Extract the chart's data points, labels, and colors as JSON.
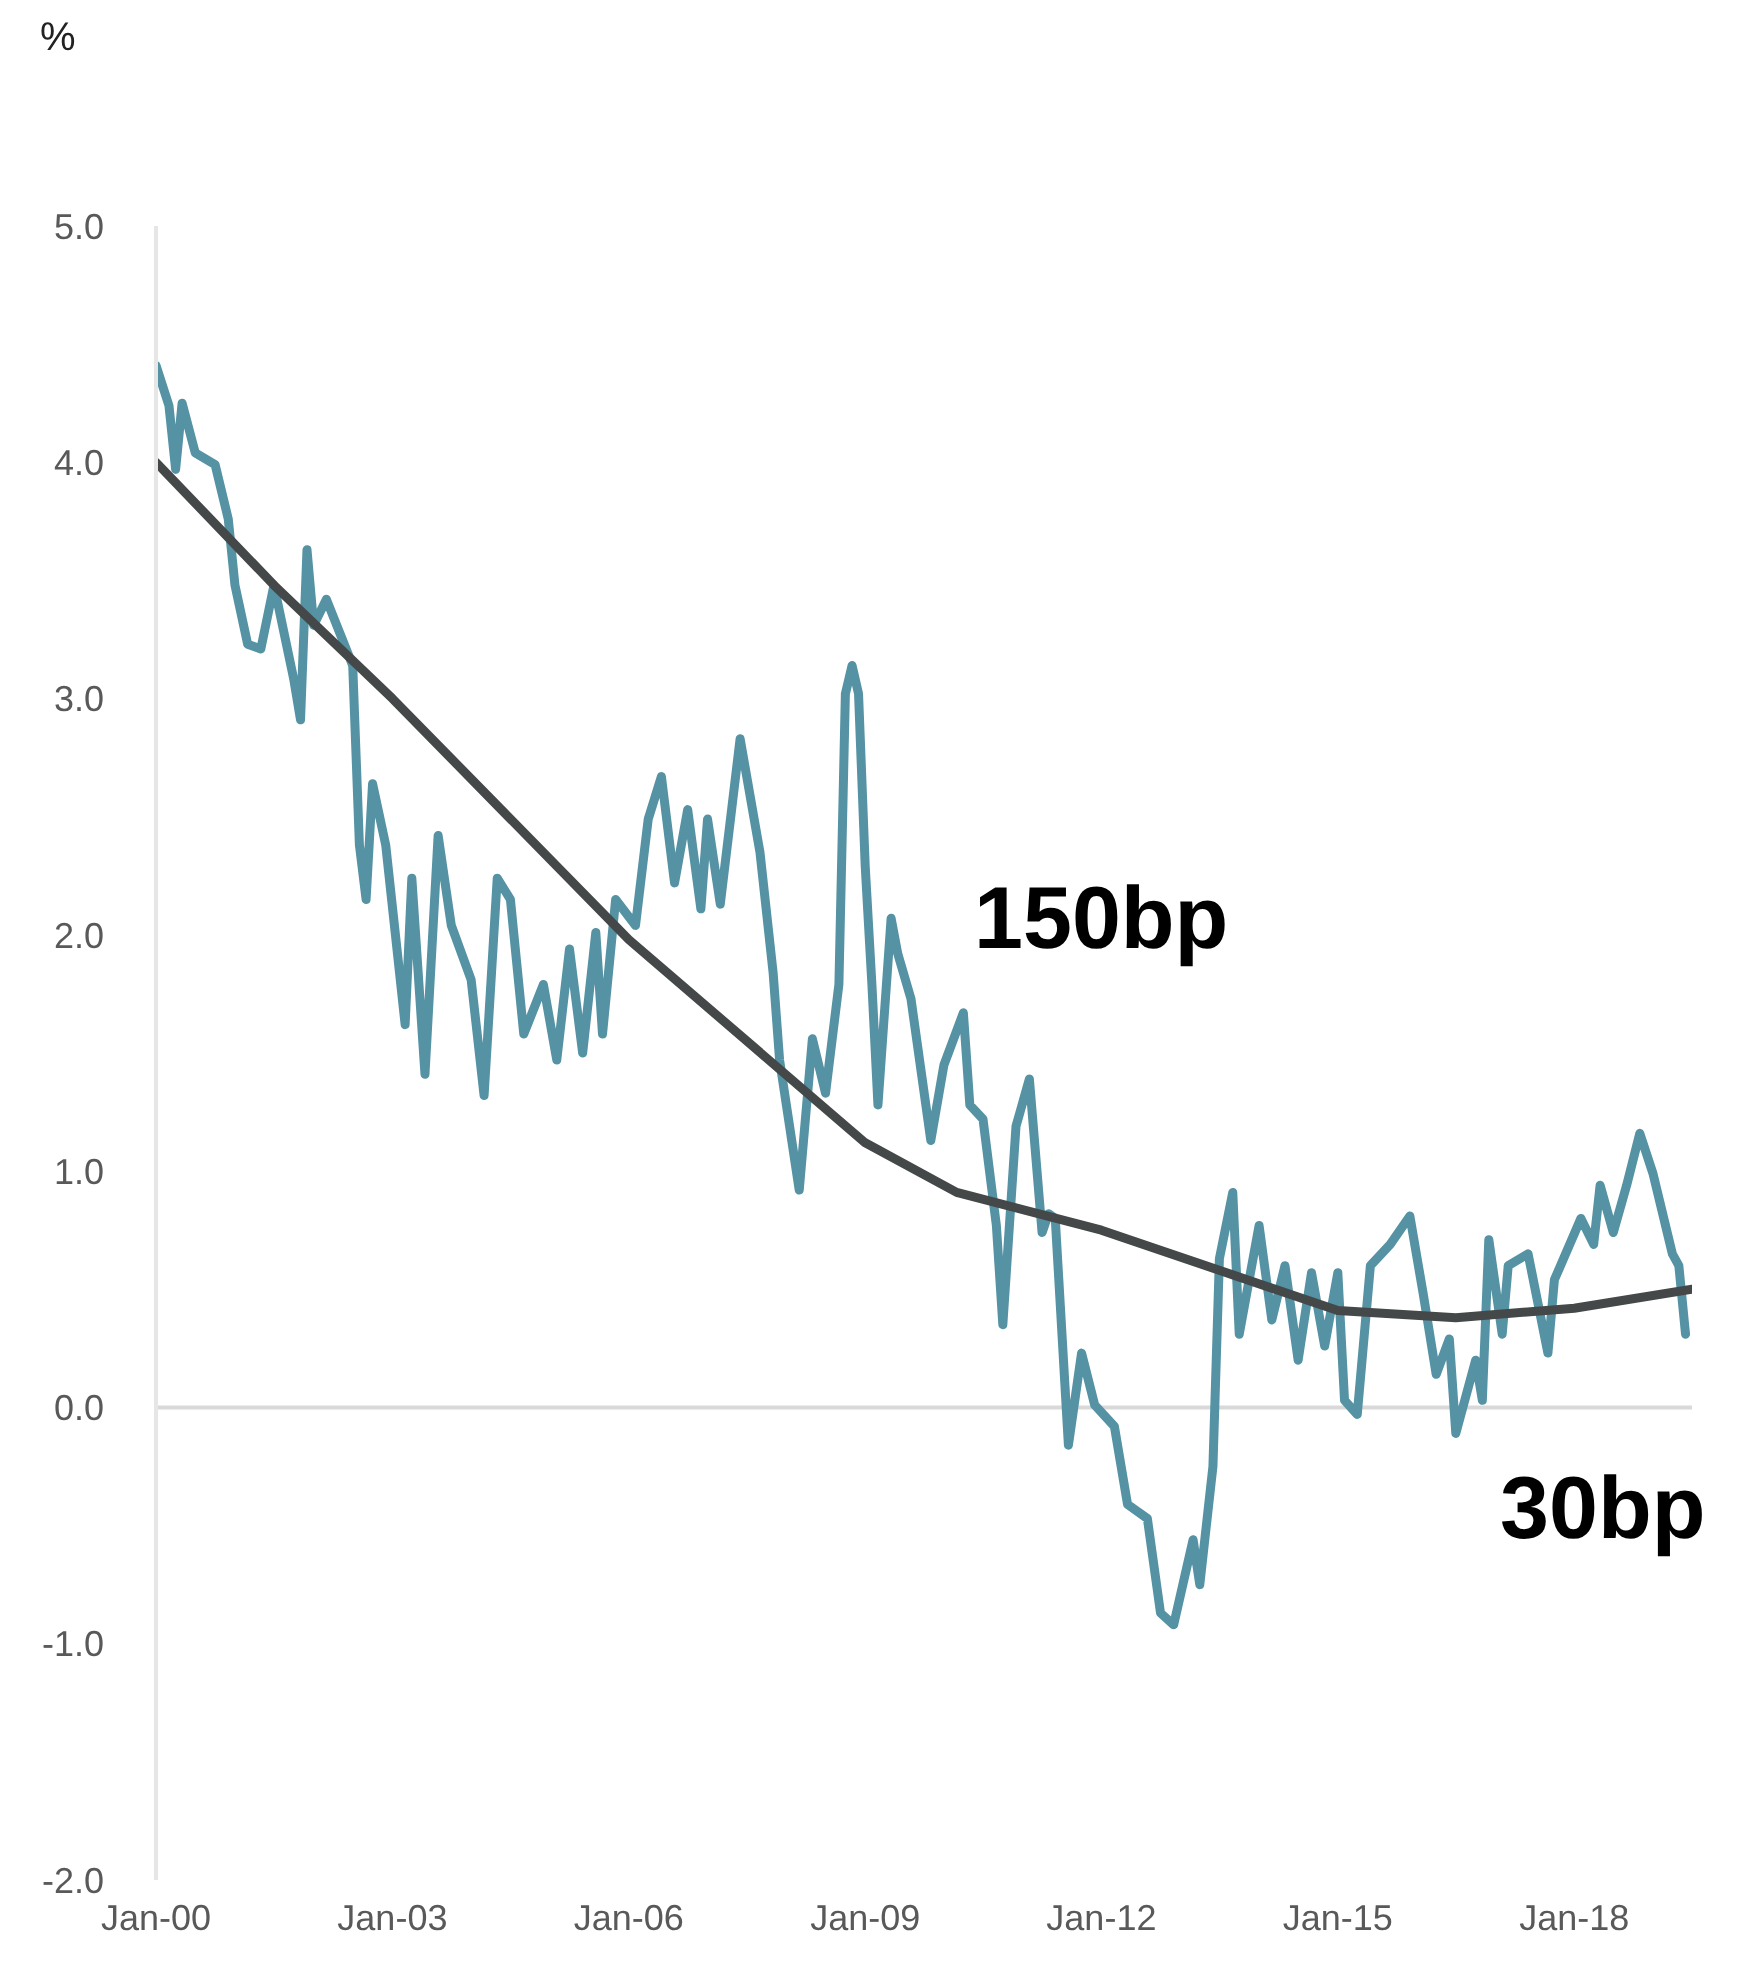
{
  "chart_data": {
    "type": "line",
    "ylabel": "%",
    "xlim": [
      "2000-01",
      "2019-07"
    ],
    "xticks": [
      {
        "value": "2000-01",
        "label": "Jan-00"
      },
      {
        "value": "2003-01",
        "label": "Jan-03"
      },
      {
        "value": "2006-01",
        "label": "Jan-06"
      },
      {
        "value": "2009-01",
        "label": "Jan-09"
      },
      {
        "value": "2012-01",
        "label": "Jan-12"
      },
      {
        "value": "2015-01",
        "label": "Jan-15"
      },
      {
        "value": "2018-01",
        "label": "Jan-18"
      }
    ],
    "ylim": [
      -2,
      5
    ],
    "yticks": [
      {
        "value": -2,
        "label": "-2.0"
      },
      {
        "value": -1,
        "label": "-1.0"
      },
      {
        "value": 0,
        "label": "0.0"
      },
      {
        "value": 1,
        "label": "1.0"
      },
      {
        "value": 2,
        "label": "2.0"
      },
      {
        "value": 3,
        "label": "3.0"
      },
      {
        "value": 4,
        "label": "4.0"
      },
      {
        "value": 5,
        "label": "5.0"
      }
    ],
    "grid": false,
    "legend": false,
    "marker": "none",
    "ref_lines": [
      {
        "axis": "y",
        "value": 0,
        "color": "#d9d9d9"
      }
    ],
    "annotations": [
      "150bp",
      "30bp"
    ],
    "series": [
      {
        "color": "#5592a3",
        "x": [
          "2000-01",
          "2000-03",
          "2000-04",
          "2000-05",
          "2000-07",
          "2000-10",
          "2000-12",
          "2001-01",
          "2001-03",
          "2001-05",
          "2001-07",
          "2001-10",
          "2001-11",
          "2001-12",
          "2002-01",
          "2002-03",
          "2002-07",
          "2002-08",
          "2002-09",
          "2002-10",
          "2002-12",
          "2003-03",
          "2003-04",
          "2003-06",
          "2003-08",
          "2003-10",
          "2004-01",
          "2004-03",
          "2004-05",
          "2004-07",
          "2004-09",
          "2004-12",
          "2005-02",
          "2005-04",
          "2005-06",
          "2005-08",
          "2005-09",
          "2005-11",
          "2006-02",
          "2006-04",
          "2006-06",
          "2006-08",
          "2006-10",
          "2006-12",
          "2007-01",
          "2007-03",
          "2007-06",
          "2007-09",
          "2007-11",
          "2007-12",
          "2008-03",
          "2008-05",
          "2008-07",
          "2008-09",
          "2008-10",
          "2008-11",
          "2008-12",
          "2009-01",
          "2009-02",
          "2009-03",
          "2009-05",
          "2009-06",
          "2009-08",
          "2009-11",
          "2010-01",
          "2010-04",
          "2010-05",
          "2010-07",
          "2010-09",
          "2010-10",
          "2010-12",
          "2011-02",
          "2011-04",
          "2011-05",
          "2011-06",
          "2011-08",
          "2011-10",
          "2011-12",
          "2012-03",
          "2012-05",
          "2012-08",
          "2012-10",
          "2012-12",
          "2013-03",
          "2013-04",
          "2013-06",
          "2013-07",
          "2013-09",
          "2013-10",
          "2014-01",
          "2014-03",
          "2014-05",
          "2014-07",
          "2014-09",
          "2014-11",
          "2015-01",
          "2015-02",
          "2015-04",
          "2015-06",
          "2015-09",
          "2015-12",
          "2016-02",
          "2016-04",
          "2016-06",
          "2016-07",
          "2016-10",
          "2016-11",
          "2016-12",
          "2017-02",
          "2017-03",
          "2017-06",
          "2017-09",
          "2017-10",
          "2018-02",
          "2018-04",
          "2018-05",
          "2018-07",
          "2018-09",
          "2018-11",
          "2019-01",
          "2019-04",
          "2019-05",
          "2019-06"
        ],
        "values": [
          4.41,
          4.24,
          3.97,
          4.25,
          4.04,
          3.99,
          3.76,
          3.48,
          3.23,
          3.21,
          3.48,
          3.08,
          2.91,
          3.63,
          3.31,
          3.42,
          3.14,
          2.38,
          2.15,
          2.64,
          2.38,
          1.62,
          2.24,
          1.41,
          2.42,
          2.04,
          1.81,
          1.32,
          2.24,
          2.15,
          1.58,
          1.79,
          1.47,
          1.94,
          1.5,
          2.01,
          1.58,
          2.15,
          2.04,
          2.49,
          2.67,
          2.22,
          2.53,
          2.11,
          2.49,
          2.13,
          2.83,
          2.35,
          1.84,
          1.47,
          0.92,
          1.56,
          1.33,
          1.79,
          3.02,
          3.14,
          3.02,
          2.29,
          1.79,
          1.28,
          2.07,
          1.92,
          1.73,
          1.13,
          1.45,
          1.67,
          1.28,
          1.22,
          0.77,
          0.35,
          1.19,
          1.39,
          0.74,
          0.82,
          0.8,
          -0.16,
          0.23,
          0.01,
          -0.08,
          -0.41,
          -0.47,
          -0.87,
          -0.92,
          -0.56,
          -0.75,
          -0.25,
          0.63,
          0.91,
          0.31,
          0.77,
          0.37,
          0.6,
          0.2,
          0.57,
          0.26,
          0.57,
          0.03,
          -0.03,
          0.6,
          0.69,
          0.81,
          0.48,
          0.14,
          0.29,
          -0.11,
          0.2,
          0.03,
          0.71,
          0.31,
          0.6,
          0.65,
          0.23,
          0.54,
          0.8,
          0.69,
          0.94,
          0.74,
          0.94,
          1.16,
          0.99,
          0.65,
          0.6,
          0.31
        ]
      },
      {
        "color": "#444848",
        "x": [
          "2000-01",
          "2001-07",
          "2003-01",
          "2006-01",
          "2009-01",
          "2010-03",
          "2012-01",
          "2015-01",
          "2016-07",
          "2018-01",
          "2019-07"
        ],
        "values": [
          4.0,
          3.48,
          3.0,
          1.98,
          1.12,
          0.91,
          0.75,
          0.41,
          0.38,
          0.42,
          0.5
        ]
      }
    ]
  }
}
